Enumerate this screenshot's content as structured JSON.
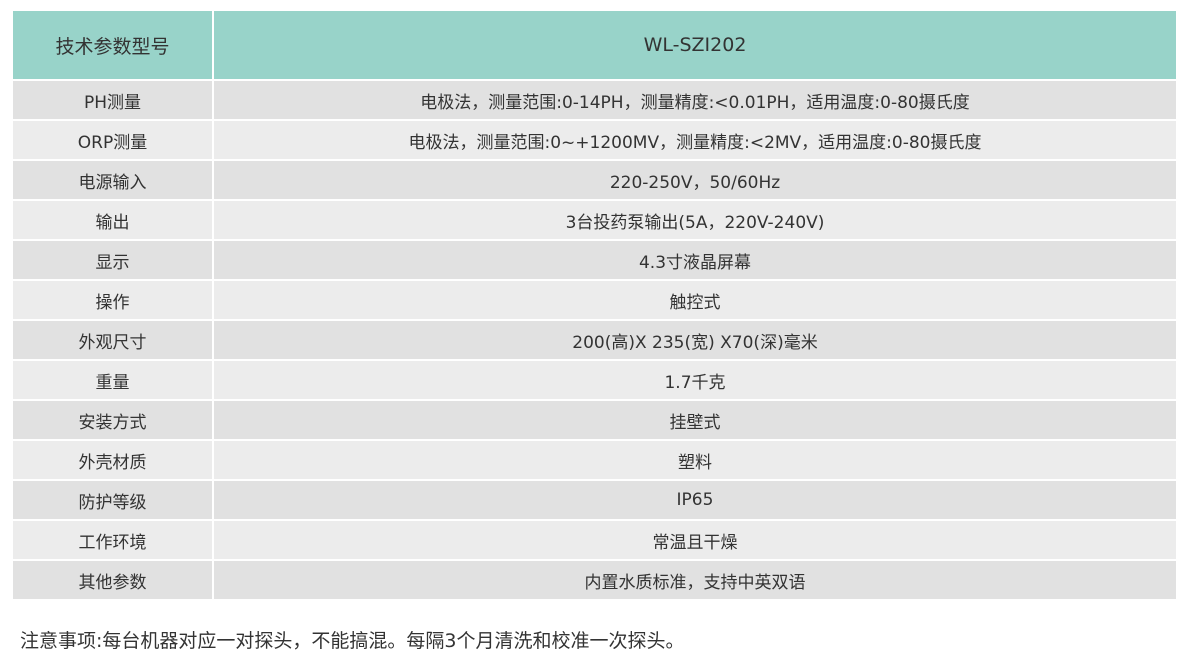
{
  "table": {
    "header": [
      "技术参数型号",
      "WL-SZI202"
    ],
    "rows": [
      [
        "PH测量",
        "电极法，测量范围:0-14PH，测量精度:<0.01PH，适用温度:0-80摄氏度"
      ],
      [
        "ORP测量",
        "电极法，测量范围:0~+1200MV，测量精度:<2MV，适用温度:0-80摄氏度"
      ],
      [
        "电源输入",
        "220-250V，50/60Hz"
      ],
      [
        "输出",
        "3台投药泵输出(5A，220V-240V)"
      ],
      [
        "显示",
        "4.3寸液晶屏幕"
      ],
      [
        "操作",
        "触控式"
      ],
      [
        "外观尺寸",
        "200(高)X 235(宽) X70(深)毫米"
      ],
      [
        "重量",
        "1.7千克"
      ],
      [
        "安装方式",
        "挂壁式"
      ],
      [
        "外壳材质",
        "塑料"
      ],
      [
        "防护等级",
        "IP65"
      ],
      [
        "工作环境",
        "常温且干燥"
      ],
      [
        "其他参数",
        "内置水质标准，支持中英双语"
      ]
    ]
  },
  "note": "注意事项:每台机器对应一对探头，不能搞混。每隔3个月清洗和校准一次探头。"
}
